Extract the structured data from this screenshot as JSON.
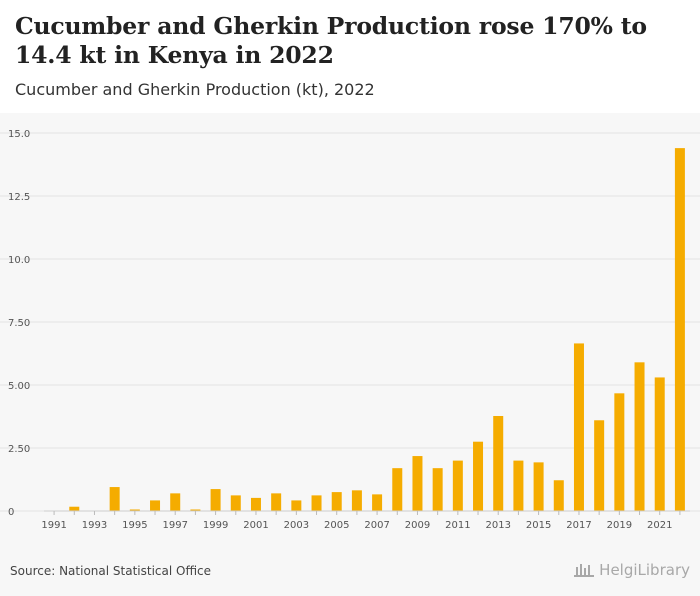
{
  "header": {
    "title": "Cucumber and Gherkin Production rose 170% to 14.4 kt in Kenya in 2022",
    "subtitle": "Cucumber and Gherkin Production (kt), 2022"
  },
  "footer": {
    "source": "Source: National Statistical Office",
    "logo_text": "HelgiLibrary"
  },
  "colors": {
    "bar": "#f5ac00",
    "grid": "#e3e3e3",
    "axis_text": "#555555"
  },
  "chart_data": {
    "type": "bar",
    "title": "Cucumber and Gherkin Production (kt), 2022",
    "xlabel": "",
    "ylabel": "",
    "ylim": [
      0,
      15
    ],
    "yticks": [
      0,
      2.5,
      5,
      7.5,
      10,
      12.5,
      15
    ],
    "ytick_labels": [
      "0",
      "2.50",
      "5.00",
      "7.50",
      "10.0",
      "12.5",
      "15.0"
    ],
    "xtick_labels": [
      "1991",
      "1993",
      "1995",
      "1997",
      "1999",
      "2001",
      "2003",
      "2005",
      "2007",
      "2009",
      "2011",
      "2013",
      "2015",
      "2017",
      "2019",
      "2021"
    ],
    "categories": [
      "1991",
      "1992",
      "1993",
      "1994",
      "1995",
      "1996",
      "1997",
      "1998",
      "1999",
      "2000",
      "2001",
      "2002",
      "2003",
      "2004",
      "2005",
      "2006",
      "2007",
      "2008",
      "2009",
      "2010",
      "2011",
      "2012",
      "2013",
      "2014",
      "2015",
      "2016",
      "2017",
      "2018",
      "2019",
      "2020",
      "2021",
      "2022"
    ],
    "values": [
      0,
      0.17,
      0,
      0.95,
      0.06,
      0.42,
      0.7,
      0.06,
      0.87,
      0.62,
      0.52,
      0.7,
      0.42,
      0.62,
      0.75,
      0.82,
      0.66,
      1.7,
      2.18,
      1.7,
      2.0,
      2.75,
      3.77,
      2.0,
      1.93,
      1.22,
      6.65,
      3.6,
      4.67,
      5.9,
      5.3,
      14.4
    ],
    "grid": true,
    "legend": "none"
  }
}
